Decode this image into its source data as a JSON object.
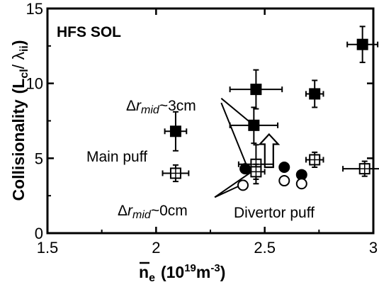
{
  "chart_data": {
    "type": "scatter",
    "xlim": [
      1.5,
      3.0
    ],
    "ylim": [
      0,
      15
    ],
    "x_ticks": [
      "1.5",
      "2",
      "2.5",
      "3"
    ],
    "y_ticks": [
      "0",
      "5",
      "10",
      "15"
    ],
    "ylabel_main": "Collisionality",
    "ylabel_paren": "(L",
    "ylabel_sub1": "cl",
    "ylabel_slash": "/ λ",
    "ylabel_sub2": "ii",
    "ylabel_close": ")",
    "xlabel_main": "n",
    "xlabel_sub": "e",
    "xlabel_units": "(10",
    "xlabel_exp": "19",
    "xlabel_unit_m": "m",
    "xlabel_unit_exp": "-3",
    "xlabel_close": ")",
    "region_label": "HFS SOL",
    "annotations": {
      "dr3_delta": "Δ",
      "dr3_r": "r",
      "dr3_sub": "mid",
      "dr3_tail": "~3cm",
      "dr0_delta": "Δ",
      "dr0_r": "r",
      "dr0_sub": "mid",
      "dr0_tail": "~0cm",
      "main_puff": "Main puff",
      "divertor_puff": "Divertor puff"
    },
    "series": [
      {
        "marker": "filled-square",
        "points": [
          {
            "x": 2.09,
            "y": 6.8,
            "xerr": 0.05,
            "yerr": 1.3
          },
          {
            "x": 2.46,
            "y": 9.6,
            "xerr": 0.12,
            "yerr": 1.3
          },
          {
            "x": 2.45,
            "y": 7.2,
            "xerr": 0.11,
            "yerr": 1.2
          },
          {
            "x": 2.73,
            "y": 9.3,
            "xerr": 0.04,
            "yerr": 0.9
          },
          {
            "x": 2.95,
            "y": 12.6,
            "xerr": 0.07,
            "yerr": 1.2
          }
        ]
      },
      {
        "marker": "open-square",
        "points": [
          {
            "x": 2.09,
            "y": 4.0,
            "xerr": 0.06,
            "yerr": 0.55
          },
          {
            "x": 2.46,
            "y": 4.6,
            "xerr": 0.08,
            "yerr": 1.3
          },
          {
            "x": 2.46,
            "y": 4.1,
            "xerr": 0.04,
            "yerr": 0.5
          },
          {
            "x": 2.73,
            "y": 4.9,
            "xerr": 0.04,
            "yerr": 0.5
          },
          {
            "x": 2.96,
            "y": 4.3,
            "xerr": 0.1,
            "yerr": 0.5
          }
        ]
      },
      {
        "marker": "filled-circle",
        "points": [
          {
            "x": 2.41,
            "y": 4.3
          },
          {
            "x": 2.59,
            "y": 4.4
          },
          {
            "x": 2.67,
            "y": 3.9
          }
        ]
      },
      {
        "marker": "open-circle",
        "points": [
          {
            "x": 2.4,
            "y": 3.2
          },
          {
            "x": 2.59,
            "y": 3.5
          },
          {
            "x": 2.67,
            "y": 3.3
          }
        ]
      }
    ],
    "leader_lines": [
      {
        "from": [
          2.3,
          9.0
        ],
        "to": [
          2.45,
          7.2
        ]
      },
      {
        "from": [
          2.3,
          8.7
        ],
        "to": [
          2.42,
          4.4
        ]
      },
      {
        "from": [
          2.27,
          2.4
        ],
        "to": [
          2.45,
          4.2
        ]
      },
      {
        "from": [
          2.27,
          2.4
        ],
        "to": [
          2.39,
          3.2
        ]
      }
    ],
    "arrow": {
      "x": 2.52,
      "y_from": 4.4,
      "y_to": 6.6
    }
  }
}
